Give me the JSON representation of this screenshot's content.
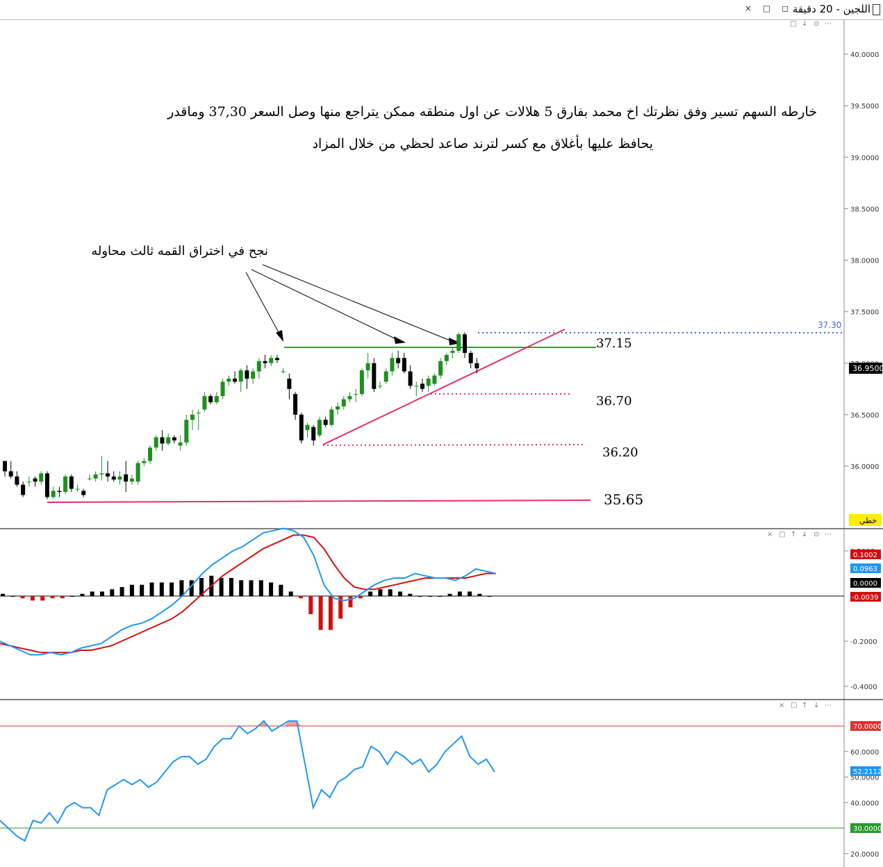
{
  "window": {
    "title": "اللجين - 20 دقيقة",
    "buttons": [
      "×",
      "□",
      "◻"
    ]
  },
  "panel_controls": {
    "price": [
      "□",
      "↓",
      "⊙",
      "⋯"
    ],
    "macd": [
      "×",
      "□",
      "↑",
      "↓",
      "⊙",
      "⋯"
    ],
    "rsi": [
      "×",
      "□",
      "↑",
      "↓",
      "⋯"
    ]
  },
  "annotations": {
    "main_text_line1": "خارطه السهم تسير وفق نظرتك اخ محمد بفارق 5 هلالات عن اول منطقه ممكن يتراجع منها وصل السعر 37,30 وماقدر",
    "main_text_line2": "يحافظ عليها بأغلاق مع كسر لترند صاعد لحظي من خلال المزاد",
    "breakout_text": "نجح في اختراق القمه  ثالث محاوله",
    "level_37_15": "37.15",
    "level_36_70": "36.70",
    "level_36_20": "36.20",
    "level_35_65": "35.65",
    "level_37_30_tag": "37.30",
    "current_price_tag": "36.9500",
    "linear_tag": "خطي"
  },
  "colors": {
    "bull": "#1f8f1f",
    "bear": "#000000",
    "green_line": "#3c9a3c",
    "pink_line": "#e0306a",
    "blue_dotted": "#3a6be0",
    "macd_line": "#2196f3",
    "signal_line": "#d01010",
    "hist_pos": "#000000",
    "hist_neg": "#d01010",
    "rsi_line": "#2196f3",
    "rsi_upper": "#e03030",
    "rsi_lower": "#2a9a2a"
  },
  "chart_data": [
    {
      "type": "candlestick",
      "title": "اللجين - 20 دقيقة",
      "ylim": [
        35.75,
        40.15
      ],
      "y_ticks": [
        "40.0000",
        "39.5000",
        "39.0000",
        "38.5000",
        "38.0000",
        "37.5000",
        "37.0000",
        "36.5000",
        "36.0000"
      ],
      "candles": [
        {
          "o": 36.05,
          "h": 36.05,
          "l": 35.9,
          "c": 35.95
        },
        {
          "o": 35.95,
          "h": 36.05,
          "l": 35.88,
          "c": 35.9
        },
        {
          "o": 35.9,
          "h": 35.95,
          "l": 35.8,
          "c": 35.82
        },
        {
          "o": 35.82,
          "h": 35.85,
          "l": 35.7,
          "c": 35.72
        },
        {
          "o": 35.85,
          "h": 35.9,
          "l": 35.8,
          "c": 35.85
        },
        {
          "o": 35.88,
          "h": 35.9,
          "l": 35.8,
          "c": 35.85
        },
        {
          "o": 35.85,
          "h": 35.95,
          "l": 35.82,
          "c": 35.93
        },
        {
          "o": 35.93,
          "h": 35.95,
          "l": 35.68,
          "c": 35.7
        },
        {
          "o": 35.7,
          "h": 35.8,
          "l": 35.68,
          "c": 35.76
        },
        {
          "o": 35.76,
          "h": 35.8,
          "l": 35.7,
          "c": 35.75
        },
        {
          "o": 35.75,
          "h": 35.92,
          "l": 35.73,
          "c": 35.9
        },
        {
          "o": 35.9,
          "h": 35.92,
          "l": 35.75,
          "c": 35.78
        },
        {
          "o": 35.78,
          "h": 35.82,
          "l": 35.75,
          "c": 35.78
        },
        {
          "o": 35.76,
          "h": 35.78,
          "l": 35.7,
          "c": 35.72
        },
        {
          "o": 35.88,
          "h": 35.92,
          "l": 35.86,
          "c": 35.88
        },
        {
          "o": 35.88,
          "h": 35.95,
          "l": 35.85,
          "c": 35.92
        },
        {
          "o": 35.92,
          "h": 36.1,
          "l": 35.86,
          "c": 35.93
        },
        {
          "o": 35.93,
          "h": 36.05,
          "l": 35.85,
          "c": 35.9
        },
        {
          "o": 35.9,
          "h": 35.95,
          "l": 35.85,
          "c": 35.87
        },
        {
          "o": 35.87,
          "h": 35.95,
          "l": 35.82,
          "c": 35.9
        },
        {
          "o": 35.92,
          "h": 36.05,
          "l": 35.75,
          "c": 35.85
        },
        {
          "o": 35.85,
          "h": 35.92,
          "l": 35.82,
          "c": 35.88
        },
        {
          "o": 35.85,
          "h": 36.05,
          "l": 35.82,
          "c": 36.03
        },
        {
          "o": 36.03,
          "h": 36.08,
          "l": 36.0,
          "c": 36.05
        },
        {
          "o": 36.05,
          "h": 36.2,
          "l": 36.02,
          "c": 36.18
        },
        {
          "o": 36.18,
          "h": 36.3,
          "l": 36.15,
          "c": 36.28
        },
        {
          "o": 36.28,
          "h": 36.35,
          "l": 36.15,
          "c": 36.22
        },
        {
          "o": 36.22,
          "h": 36.32,
          "l": 36.2,
          "c": 36.28
        },
        {
          "o": 36.28,
          "h": 36.3,
          "l": 36.22,
          "c": 36.25
        },
        {
          "o": 36.2,
          "h": 36.3,
          "l": 36.15,
          "c": 36.23
        },
        {
          "o": 36.23,
          "h": 36.5,
          "l": 36.2,
          "c": 36.45
        },
        {
          "o": 36.45,
          "h": 36.55,
          "l": 36.35,
          "c": 36.5
        },
        {
          "o": 36.52,
          "h": 36.55,
          "l": 36.35,
          "c": 36.52
        },
        {
          "o": 36.55,
          "h": 36.72,
          "l": 36.53,
          "c": 36.68
        },
        {
          "o": 36.68,
          "h": 36.7,
          "l": 36.6,
          "c": 36.62
        },
        {
          "o": 36.62,
          "h": 36.72,
          "l": 36.6,
          "c": 36.68
        },
        {
          "o": 36.68,
          "h": 36.85,
          "l": 36.65,
          "c": 36.82
        },
        {
          "o": 36.82,
          "h": 36.88,
          "l": 36.78,
          "c": 36.85
        },
        {
          "o": 36.85,
          "h": 36.92,
          "l": 36.8,
          "c": 36.82
        },
        {
          "o": 36.82,
          "h": 36.95,
          "l": 36.72,
          "c": 36.93
        },
        {
          "o": 36.93,
          "h": 36.98,
          "l": 36.75,
          "c": 36.85
        },
        {
          "o": 36.85,
          "h": 36.95,
          "l": 36.8,
          "c": 36.92
        },
        {
          "o": 36.92,
          "h": 37.05,
          "l": 36.85,
          "c": 37.02
        },
        {
          "o": 37.02,
          "h": 37.08,
          "l": 36.95,
          "c": 37.0
        },
        {
          "o": 37.0,
          "h": 37.08,
          "l": 36.97,
          "c": 37.05
        },
        {
          "o": 37.05,
          "h": 37.08,
          "l": 37.0,
          "c": 37.03
        },
        {
          "o": 36.92,
          "h": 36.95,
          "l": 36.9,
          "c": 36.92
        },
        {
          "o": 36.85,
          "h": 36.9,
          "l": 36.65,
          "c": 36.75
        },
        {
          "o": 36.7,
          "h": 36.72,
          "l": 36.45,
          "c": 36.5
        },
        {
          "o": 36.5,
          "h": 36.52,
          "l": 36.22,
          "c": 36.25
        },
        {
          "o": 36.35,
          "h": 36.42,
          "l": 36.28,
          "c": 36.4
        },
        {
          "o": 36.38,
          "h": 36.4,
          "l": 36.2,
          "c": 36.25
        },
        {
          "o": 36.3,
          "h": 36.48,
          "l": 36.28,
          "c": 36.45
        },
        {
          "o": 36.45,
          "h": 36.48,
          "l": 36.38,
          "c": 36.4
        },
        {
          "o": 36.4,
          "h": 36.58,
          "l": 36.38,
          "c": 36.55
        },
        {
          "o": 36.55,
          "h": 36.62,
          "l": 36.5,
          "c": 36.58
        },
        {
          "o": 36.58,
          "h": 36.68,
          "l": 36.55,
          "c": 36.65
        },
        {
          "o": 36.65,
          "h": 36.72,
          "l": 36.62,
          "c": 36.68
        },
        {
          "o": 36.7,
          "h": 36.75,
          "l": 36.62,
          "c": 36.7
        },
        {
          "o": 36.7,
          "h": 36.95,
          "l": 36.68,
          "c": 36.93
        },
        {
          "o": 36.93,
          "h": 37.1,
          "l": 36.85,
          "c": 37.0
        },
        {
          "o": 37.0,
          "h": 37.05,
          "l": 36.72,
          "c": 36.75
        },
        {
          "o": 36.78,
          "h": 36.82,
          "l": 36.75,
          "c": 36.78
        },
        {
          "o": 36.82,
          "h": 36.95,
          "l": 36.8,
          "c": 36.92
        },
        {
          "o": 36.92,
          "h": 37.1,
          "l": 36.88,
          "c": 37.05
        },
        {
          "o": 37.05,
          "h": 37.12,
          "l": 36.95,
          "c": 37.0
        },
        {
          "o": 37.05,
          "h": 37.1,
          "l": 36.9,
          "c": 36.92
        },
        {
          "o": 36.92,
          "h": 36.98,
          "l": 36.75,
          "c": 36.78
        },
        {
          "o": 36.78,
          "h": 36.82,
          "l": 36.68,
          "c": 36.78
        },
        {
          "o": 36.8,
          "h": 36.85,
          "l": 36.72,
          "c": 36.75
        },
        {
          "o": 36.78,
          "h": 36.88,
          "l": 36.72,
          "c": 36.85
        },
        {
          "o": 36.8,
          "h": 36.9,
          "l": 36.78,
          "c": 36.88
        },
        {
          "o": 36.88,
          "h": 37.05,
          "l": 36.85,
          "c": 37.02
        },
        {
          "o": 37.02,
          "h": 37.1,
          "l": 36.98,
          "c": 37.08
        },
        {
          "o": 37.1,
          "h": 37.15,
          "l": 37.05,
          "c": 37.12
        },
        {
          "o": 37.12,
          "h": 37.3,
          "l": 37.1,
          "c": 37.28
        },
        {
          "o": 37.28,
          "h": 37.3,
          "l": 37.05,
          "c": 37.1
        },
        {
          "o": 37.1,
          "h": 37.12,
          "l": 36.95,
          "c": 37.0
        },
        {
          "o": 37.0,
          "h": 37.05,
          "l": 36.9,
          "c": 36.95
        }
      ],
      "levels": [
        37.15,
        36.7,
        36.2,
        35.65,
        37.3
      ],
      "current_price": 36.95
    },
    {
      "type": "macd",
      "ylim": [
        -0.43,
        0.32
      ],
      "y_ticks": [
        "0.2000",
        "-0.2000",
        "-0.4000"
      ],
      "tags": {
        "signal": "0.1002",
        "macd": "0.0963",
        "zero": "0.0000",
        "hist": "-0.0039"
      },
      "macd": [
        -0.2,
        -0.22,
        -0.24,
        -0.26,
        -0.26,
        -0.25,
        -0.26,
        -0.25,
        -0.23,
        -0.22,
        -0.21,
        -0.18,
        -0.15,
        -0.13,
        -0.12,
        -0.1,
        -0.07,
        -0.04,
        0.0,
        0.05,
        0.1,
        0.14,
        0.17,
        0.2,
        0.22,
        0.25,
        0.28,
        0.29,
        0.3,
        0.29,
        0.26,
        0.18,
        0.05,
        -0.01,
        -0.02,
        -0.01,
        0.02,
        0.05,
        0.07,
        0.08,
        0.08,
        0.1,
        0.09,
        0.08,
        0.08,
        0.07,
        0.09,
        0.12,
        0.11,
        0.1
      ],
      "signal": [
        -0.21,
        -0.22,
        -0.23,
        -0.24,
        -0.25,
        -0.25,
        -0.25,
        -0.25,
        -0.24,
        -0.24,
        -0.23,
        -0.22,
        -0.2,
        -0.18,
        -0.16,
        -0.14,
        -0.12,
        -0.1,
        -0.07,
        -0.03,
        0.01,
        0.05,
        0.09,
        0.12,
        0.15,
        0.18,
        0.21,
        0.23,
        0.25,
        0.27,
        0.27,
        0.26,
        0.21,
        0.14,
        0.08,
        0.04,
        0.03,
        0.03,
        0.04,
        0.05,
        0.06,
        0.07,
        0.08,
        0.08,
        0.08,
        0.08,
        0.08,
        0.09,
        0.1,
        0.1
      ],
      "histogram": [
        0.01,
        0.0,
        -0.01,
        -0.02,
        -0.02,
        -0.01,
        -0.01,
        0.0,
        0.01,
        0.02,
        0.02,
        0.03,
        0.04,
        0.05,
        0.05,
        0.06,
        0.06,
        0.06,
        0.07,
        0.07,
        0.08,
        0.09,
        0.08,
        0.08,
        0.07,
        0.07,
        0.07,
        0.06,
        0.05,
        0.02,
        -0.01,
        -0.08,
        -0.15,
        -0.15,
        -0.1,
        -0.05,
        -0.01,
        0.02,
        0.03,
        0.03,
        0.02,
        0.01,
        0.0,
        0.0,
        0.0,
        0.01,
        0.02,
        0.02,
        0.01,
        0.0
      ]
    },
    {
      "type": "rsi",
      "ylim": [
        18,
        75
      ],
      "y_ticks": [
        "60.0000",
        "50.0000",
        "40.0000",
        "20.0000"
      ],
      "upper": 70,
      "lower": 30,
      "tags": {
        "upper": "70.0000",
        "value": "52.2112",
        "lower": "30.0000"
      },
      "values": [
        33,
        30,
        27,
        25,
        33,
        32,
        36,
        32,
        38,
        40,
        38,
        38,
        35,
        45,
        47,
        49,
        47,
        49,
        46,
        48,
        52,
        56,
        58,
        58,
        55,
        57,
        62,
        65,
        65,
        70,
        67,
        69,
        72,
        68,
        70,
        72,
        72,
        55,
        38,
        45,
        42,
        48,
        50,
        53,
        54,
        62,
        60,
        55,
        60,
        58,
        55,
        57,
        52,
        55,
        60,
        63,
        66,
        58,
        55,
        57,
        52
      ]
    }
  ]
}
